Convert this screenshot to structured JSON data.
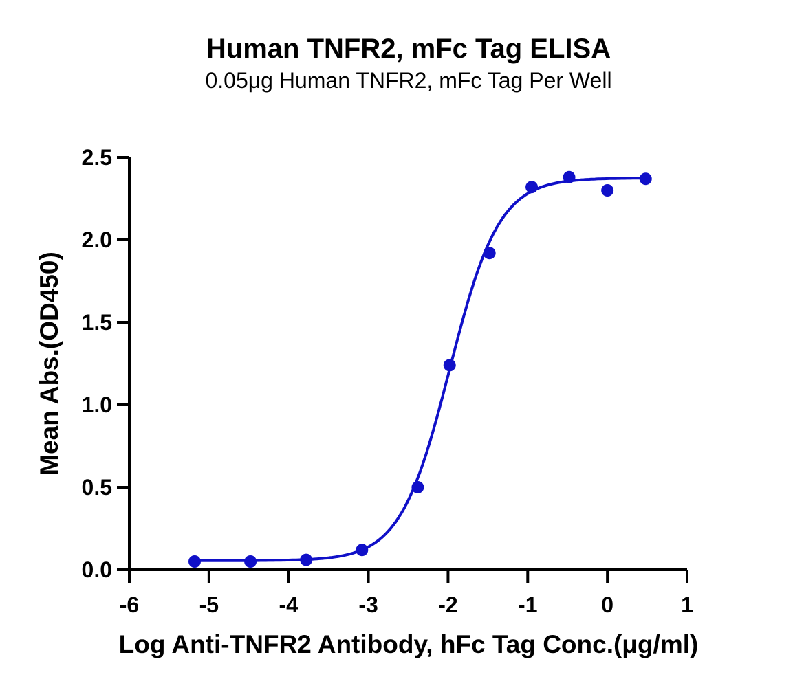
{
  "chart_data": {
    "type": "scatter",
    "title": "Human TNFR2, mFc Tag ELISA",
    "subtitle": "0.05μg Human TNFR2, mFc Tag Per Well",
    "xlabel": "Log Anti-TNFR2 Antibody, hFc Tag Conc.(μg/ml)",
    "ylabel": "Mean Abs.(OD450)",
    "xlim": [
      -6,
      1
    ],
    "ylim": [
      0,
      2.5
    ],
    "x_ticks": [
      -6,
      -5,
      -4,
      -3,
      -2,
      -1,
      0,
      1
    ],
    "x_tick_labels": [
      "-6",
      "-5",
      "-4",
      "-3",
      "-2",
      "-1",
      "0",
      "1"
    ],
    "y_ticks": [
      0,
      0.5,
      1.0,
      1.5,
      2.0,
      2.5
    ],
    "y_tick_labels": [
      "0.0",
      "0.5",
      "1.0",
      "1.5",
      "2.0",
      "2.5"
    ],
    "grid": false,
    "legend": "none",
    "series": [
      {
        "color": "#1010c8",
        "x": [
          -5.18,
          -4.48,
          -3.78,
          -3.08,
          -2.38,
          -1.98,
          -1.48,
          -0.95,
          -0.48,
          0.0,
          0.48
        ],
        "y": [
          0.05,
          0.05,
          0.06,
          0.12,
          0.5,
          1.24,
          1.92,
          2.32,
          2.38,
          2.3,
          2.37
        ]
      }
    ],
    "fit_curve": {
      "model": "4PL",
      "color": "#1010c8",
      "bottom": 0.055,
      "top": 2.375,
      "log_ec50": -1.98,
      "hill_slope": 1.4
    }
  }
}
